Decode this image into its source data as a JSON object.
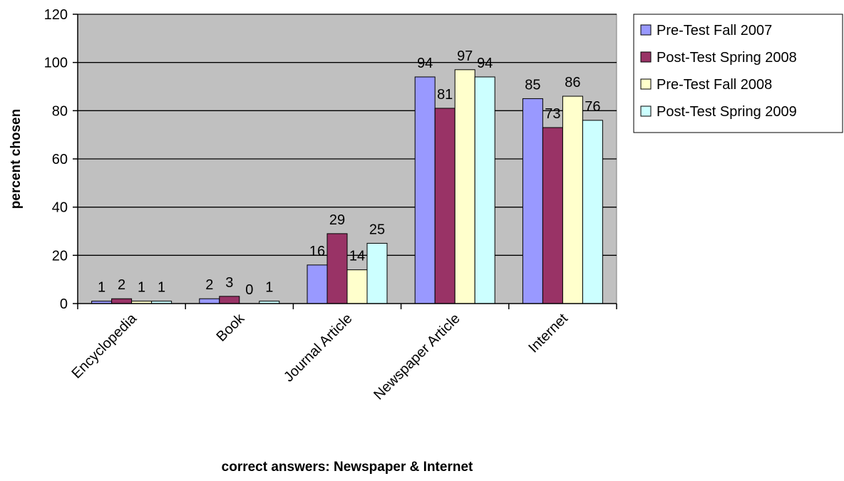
{
  "chart_data": {
    "type": "bar",
    "categories": [
      "Encyclopedia",
      "Book",
      "Journal Article",
      "Newspaper Article",
      "Internet"
    ],
    "series": [
      {
        "name": "Pre-Test Fall 2007",
        "color": "#9999ff",
        "values": [
          1,
          2,
          16,
          94,
          85
        ]
      },
      {
        "name": "Post-Test Spring 2008",
        "color": "#993366",
        "values": [
          2,
          3,
          29,
          81,
          73
        ]
      },
      {
        "name": "Pre-Test Fall 2008",
        "color": "#ffffcc",
        "values": [
          1,
          0,
          14,
          97,
          86
        ]
      },
      {
        "name": "Post-Test Spring 2009",
        "color": "#ccffff",
        "values": [
          1,
          1,
          25,
          94,
          76
        ]
      }
    ],
    "ylabel": "percent chosen",
    "xlabel": "correct answers: Newspaper & Internet",
    "ylim": [
      0,
      120
    ],
    "yticks": [
      0,
      20,
      40,
      60,
      80,
      100,
      120
    ],
    "plot_background": "#c0c0c0",
    "grid": true,
    "legend_position": "right"
  }
}
